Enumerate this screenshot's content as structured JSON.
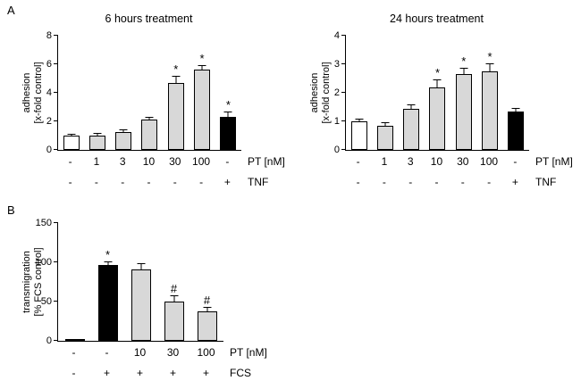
{
  "panels": {
    "a_label": "A",
    "b_label": "B"
  },
  "colors": {
    "bar_gray": "#d8d8d8",
    "bar_black": "#000000",
    "bar_white": "#ffffff",
    "axis": "#000000"
  },
  "chart_data": [
    {
      "id": "adhesion-6h",
      "type": "bar",
      "title": "6 hours treatment",
      "ylabel_line1": "adhesion",
      "ylabel_line2": "[x-fold control]",
      "ylim": [
        0,
        8
      ],
      "yticks": [
        0,
        2,
        4,
        6,
        8
      ],
      "grid": false,
      "values": [
        1.0,
        1.0,
        1.25,
        2.1,
        4.7,
        5.6,
        2.3
      ],
      "errors": [
        0.08,
        0.1,
        0.12,
        0.15,
        0.45,
        0.3,
        0.3
      ],
      "markers": [
        "",
        "",
        "",
        "",
        "*",
        "*",
        "*"
      ],
      "bar_fills": [
        "#ffffff",
        "#d8d8d8",
        "#d8d8d8",
        "#d8d8d8",
        "#d8d8d8",
        "#d8d8d8",
        "#000000"
      ],
      "x_rows": [
        {
          "label": "PT [nM]",
          "cells": [
            "-",
            "1",
            "3",
            "10",
            "30",
            "100",
            "-"
          ]
        },
        {
          "label": "TNF",
          "cells": [
            "-",
            "-",
            "-",
            "-",
            "-",
            "-",
            "+"
          ]
        }
      ]
    },
    {
      "id": "adhesion-24h",
      "type": "bar",
      "title": "24 hours treatment",
      "ylabel_line1": "adhesion",
      "ylabel_line2": "[x-fold control]",
      "ylim": [
        0,
        4
      ],
      "yticks": [
        0,
        1,
        2,
        3,
        4
      ],
      "grid": false,
      "values": [
        1.0,
        0.85,
        1.45,
        2.2,
        2.65,
        2.75,
        1.35
      ],
      "errors": [
        0.07,
        0.1,
        0.1,
        0.25,
        0.2,
        0.25,
        0.1
      ],
      "markers": [
        "",
        "",
        "",
        "*",
        "*",
        "*",
        ""
      ],
      "bar_fills": [
        "#ffffff",
        "#d8d8d8",
        "#d8d8d8",
        "#d8d8d8",
        "#d8d8d8",
        "#d8d8d8",
        "#000000"
      ],
      "x_rows": [
        {
          "label": "PT [nM]",
          "cells": [
            "-",
            "1",
            "3",
            "10",
            "30",
            "100",
            "-"
          ]
        },
        {
          "label": "TNF",
          "cells": [
            "-",
            "-",
            "-",
            "-",
            "-",
            "-",
            "+"
          ]
        }
      ]
    },
    {
      "id": "transmigration",
      "type": "bar",
      "title": "",
      "ylabel_line1": "transmigration",
      "ylabel_line2": "[% FCS control]",
      "ylim": [
        0,
        150
      ],
      "yticks": [
        0,
        50,
        100,
        150
      ],
      "grid": false,
      "values": [
        1.5,
        97,
        91,
        50,
        37
      ],
      "errors": [
        0,
        3,
        7,
        7,
        5
      ],
      "markers": [
        "",
        "*",
        "",
        "#",
        "#"
      ],
      "bar_fills": [
        "#ffffff",
        "#000000",
        "#d8d8d8",
        "#d8d8d8",
        "#d8d8d8"
      ],
      "x_rows": [
        {
          "label": "PT [nM]",
          "cells": [
            "-",
            "-",
            "10",
            "30",
            "100"
          ]
        },
        {
          "label": "FCS",
          "cells": [
            "-",
            "+",
            "+",
            "+",
            "+"
          ]
        }
      ]
    }
  ]
}
